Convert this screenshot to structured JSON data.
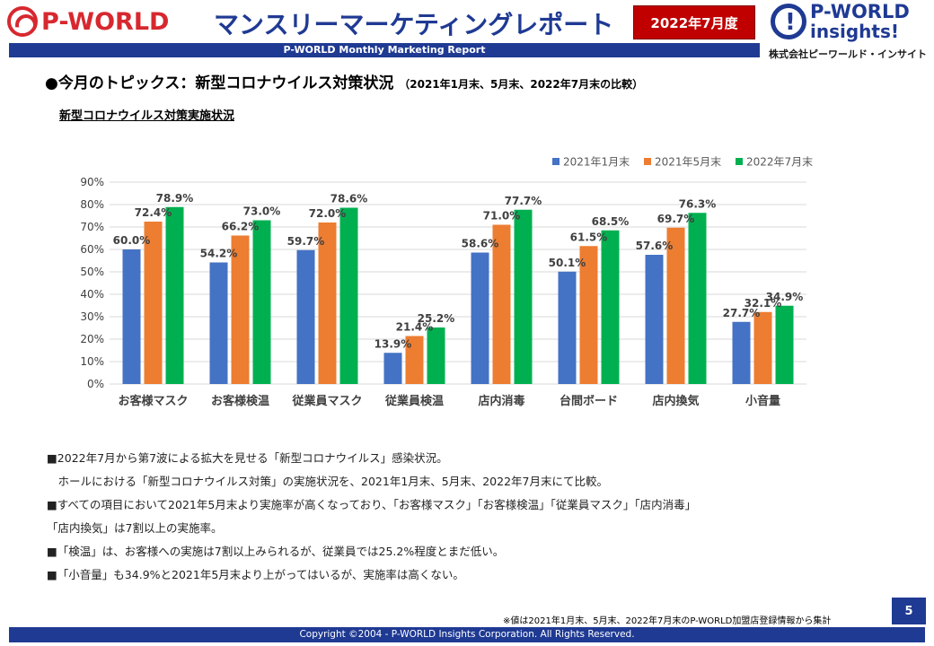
{
  "header": {
    "logo_left_text": "P-WORLD",
    "main_title": "マンスリーマーケティングレポート",
    "date_badge": "2022年7月度",
    "logo_right_brand": "P-WORLD",
    "logo_right_sub": "insights!",
    "logo_right_company": "株式会社ピーワールド・インサイト",
    "subtitle": "P-WORLD Monthly Marketing Report"
  },
  "topic": {
    "title": "●今月のトピックス：新型コロナウイルス対策状況",
    "comparison": "（2021年1月末、5月末、2022年7月末の比較）"
  },
  "chart_caption": "新型コロナウイルス対策実施状況",
  "chart_data": {
    "type": "bar",
    "categories": [
      "お客様マスク",
      "お客様検温",
      "従業員マスク",
      "従業員検温",
      "店内消毒",
      "台間ボード",
      "店内換気",
      "小音量"
    ],
    "series": [
      {
        "name": "2021年1月末",
        "color": "#4472c4",
        "values": [
          60.0,
          54.2,
          59.7,
          13.9,
          58.6,
          50.1,
          57.6,
          27.7
        ]
      },
      {
        "name": "2021年5月末",
        "color": "#ed7d31",
        "values": [
          72.4,
          66.2,
          72.0,
          21.4,
          71.0,
          61.5,
          69.7,
          32.1
        ]
      },
      {
        "name": "2022年7月末",
        "color": "#00b050",
        "values": [
          78.9,
          73.0,
          78.6,
          25.2,
          77.7,
          68.5,
          76.3,
          34.9
        ]
      }
    ],
    "yticks": [
      "0%",
      "10%",
      "20%",
      "30%",
      "40%",
      "50%",
      "60%",
      "70%",
      "80%",
      "90%"
    ],
    "ylim": [
      0,
      90
    ],
    "grid": true,
    "legend": "top-right"
  },
  "notes": [
    "■2022年7月から第7波による拡大を見せる「新型コロナウイルス」感染状況。",
    "　ホールにおける「新型コロナウイルス対策」の実施状況を、2021年1月末、5月末、2022年7月末にて比較。",
    "■すべての項目において2021年5月末より実施率が高くなっており、「お客様マスク」「お客様検温」「従業員マスク」「店内消毒」",
    "「店内換気」は7割以上の実施率。",
    "■「検温」は、お客様への実施は7割以上みられるが、従業員では25.2%程度とまだ低い。",
    "■「小音量」も34.9%と2021年5月末より上がってはいるが、実施率は高くない。"
  ],
  "footnote": "※値は2021年1月末、5月末、2022年7月末のP-WORLD加盟店登録情報から集計",
  "page_number": "5",
  "copyright": "Copyright ©2004 - P-WORLD Insights Corporation. All Rights Reserved."
}
